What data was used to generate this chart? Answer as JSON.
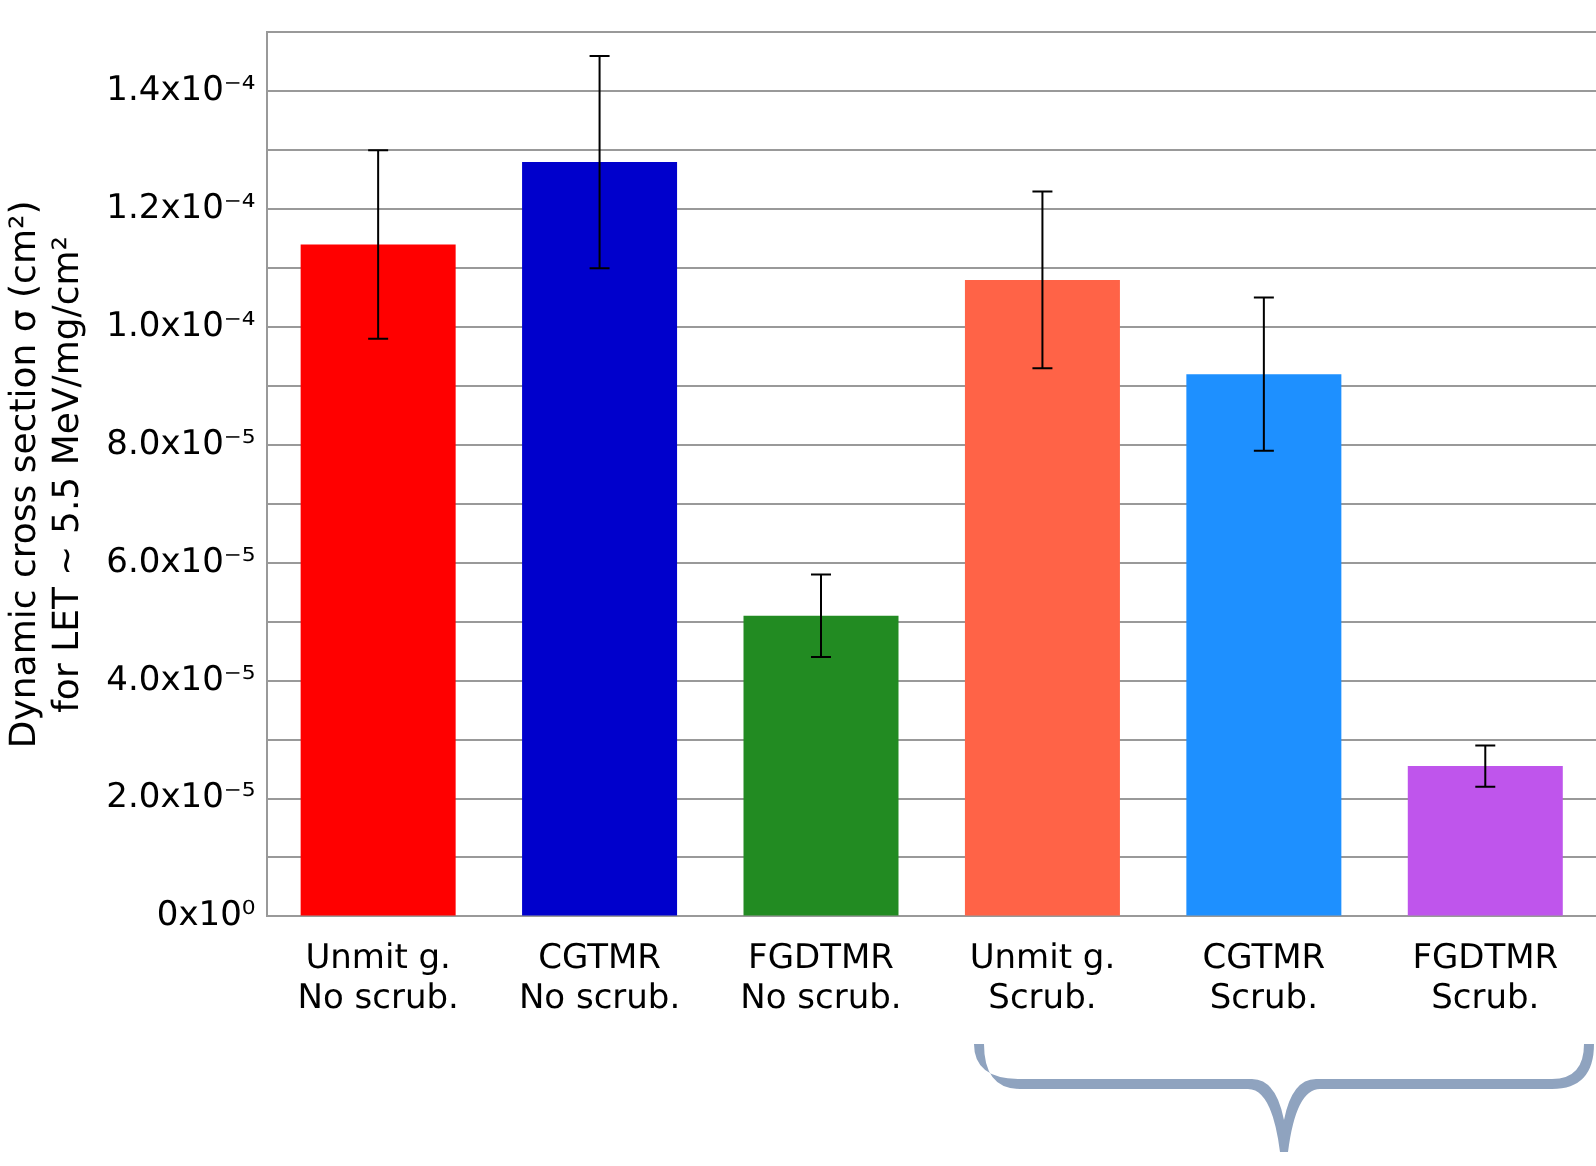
{
  "chart_data": {
    "type": "bar",
    "ylabel": "Dynamic cross section σ (cm²)\nfor LET ~ 5.5 MeV/mg/cm²",
    "categories": [
      "Unmit g.\nNo scrub.",
      "CGTMR\nNo scrub.",
      "FGDTMR\nNo scrub.",
      "Unmit g.\nScrub.",
      "CGTMR\nScrub.",
      "FGDTMR\nScrub."
    ],
    "values": [
      0.000114,
      0.000128,
      5.1e-05,
      0.000108,
      9.2e-05,
      2.55e-05
    ],
    "colors": [
      "#ff0000",
      "#0000cc",
      "#228b22",
      "#ff6347",
      "#1e90ff",
      "#bf55ec"
    ],
    "errors": [
      [
        9.8e-05,
        0.00013
      ],
      [
        0.00011,
        0.000146
      ],
      [
        4.4e-05,
        5.8e-05
      ],
      [
        9.3e-05,
        0.000123
      ],
      [
        7.9e-05,
        0.000105
      ],
      [
        2.2e-05,
        2.9e-05
      ]
    ],
    "ylim": [
      0,
      0.00015
    ],
    "yticks": [
      {
        "value": 0,
        "label": "0x10⁰"
      },
      {
        "value": 1e-05,
        "label": null
      },
      {
        "value": 2e-05,
        "label": "2.0x10⁻⁵"
      },
      {
        "value": 3e-05,
        "label": null
      },
      {
        "value": 4e-05,
        "label": "4.0x10⁻⁵"
      },
      {
        "value": 5e-05,
        "label": null
      },
      {
        "value": 6e-05,
        "label": "6.0x10⁻⁵"
      },
      {
        "value": 7e-05,
        "label": null
      },
      {
        "value": 8e-05,
        "label": "8.0x10⁻⁵"
      },
      {
        "value": 9e-05,
        "label": null
      },
      {
        "value": 0.0001,
        "label": "1.0x10⁻⁴"
      },
      {
        "value": 0.00011,
        "label": null
      },
      {
        "value": 0.00012,
        "label": "1.2x10⁻⁴"
      },
      {
        "value": 0.00013,
        "label": null
      },
      {
        "value": 0.00014,
        "label": "1.4x10⁻⁴"
      },
      {
        "value": 0.00015,
        "label": null
      }
    ],
    "grid": "y",
    "legend": false
  }
}
